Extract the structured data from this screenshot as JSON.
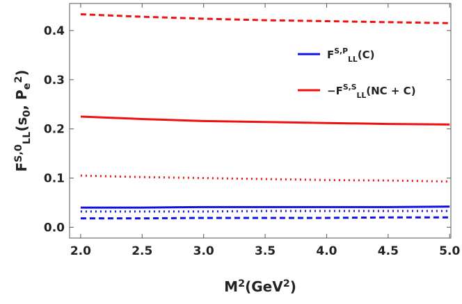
{
  "chart_data": {
    "type": "line",
    "xlabel": "M2(GeV2)",
    "ylabel": "FS,0LL(s0, Pe2)",
    "x": [
      2.0,
      2.5,
      3.0,
      3.5,
      4.0,
      4.5,
      5.0
    ],
    "xlim": [
      1.91,
      5.01
    ],
    "ylim": [
      -0.022,
      0.455
    ],
    "xticks": [
      {
        "value": 2.0,
        "label": "2.0"
      },
      {
        "value": 2.5,
        "label": "2.5"
      },
      {
        "value": 3.0,
        "label": "3.0"
      },
      {
        "value": 3.5,
        "label": "3.5"
      },
      {
        "value": 4.0,
        "label": "4.0"
      },
      {
        "value": 4.5,
        "label": "4.5"
      },
      {
        "value": 5.0,
        "label": "5.0"
      }
    ],
    "yticks": [
      {
        "value": 0,
        "label": "0.0"
      },
      {
        "value": 0.1,
        "label": "0.1"
      },
      {
        "value": 0.2,
        "label": "0.2"
      },
      {
        "value": 0.3,
        "label": "0.3"
      },
      {
        "value": 0.4,
        "label": "0.4"
      }
    ],
    "legend": "top right",
    "series": [
      {
        "name": "FS,PLL(C)",
        "color": "#1010e0",
        "style": "solid",
        "values": [
          0.04,
          0.04,
          0.041,
          0.041,
          0.041,
          0.041,
          0.042
        ]
      },
      {
        "name": "−FS,SLL(NC + C)",
        "color": "#ee1111",
        "style": "solid",
        "values": [
          0.225,
          0.22,
          0.216,
          0.214,
          0.212,
          0.21,
          0.209
        ]
      },
      {
        "color": "#1010e0",
        "style": "dotted",
        "values": [
          0.032,
          0.032,
          0.032,
          0.033,
          0.033,
          0.033,
          0.033
        ]
      },
      {
        "color": "#1010e0",
        "style": "dashed",
        "values": [
          0.018,
          0.018,
          0.019,
          0.019,
          0.019,
          0.02,
          0.02
        ]
      },
      {
        "color": "#ee1111",
        "style": "dotted",
        "values": [
          0.105,
          0.102,
          0.1,
          0.098,
          0.096,
          0.095,
          0.093
        ]
      },
      {
        "color": "#ee1111",
        "style": "dashed",
        "values": [
          0.433,
          0.428,
          0.424,
          0.421,
          0.419,
          0.417,
          0.415
        ]
      }
    ]
  }
}
